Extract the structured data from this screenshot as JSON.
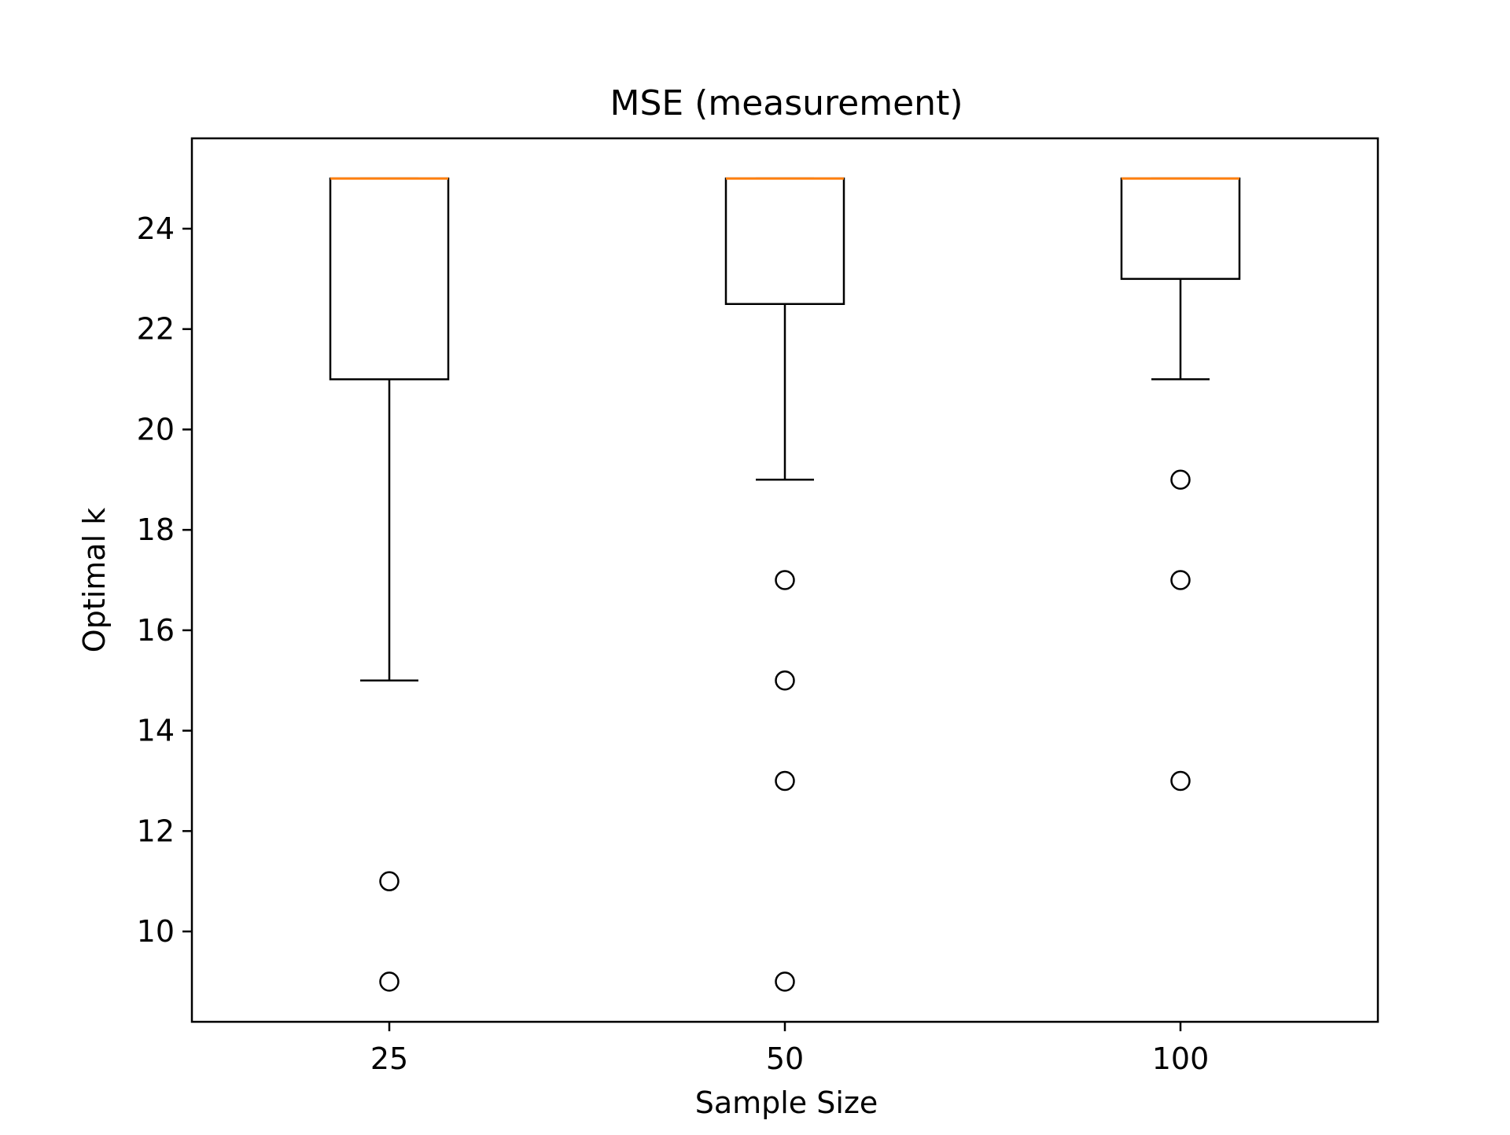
{
  "chart_data": {
    "type": "box",
    "title": "MSE (measurement)",
    "xlabel": "Sample Size",
    "ylabel": "Optimal k",
    "categories": [
      "25",
      "50",
      "100"
    ],
    "ylim": [
      8.2,
      25.8
    ],
    "yticks": [
      10,
      12,
      14,
      16,
      18,
      20,
      22,
      24
    ],
    "grid": false,
    "legend": "none",
    "boxes": [
      {
        "category": "25",
        "q1": 21,
        "median": 25,
        "q3": 25,
        "whisker_low": 15,
        "whisker_high": 25,
        "outliers": [
          11,
          9
        ]
      },
      {
        "category": "50",
        "q1": 22.5,
        "median": 25,
        "q3": 25,
        "whisker_low": 19,
        "whisker_high": 25,
        "outliers": [
          17,
          15,
          13,
          9
        ]
      },
      {
        "category": "100",
        "q1": 23,
        "median": 25,
        "q3": 25,
        "whisker_low": 21,
        "whisker_high": 25,
        "outliers": [
          19,
          17,
          13
        ]
      }
    ],
    "colors": {
      "box": "#000000",
      "median": "#ff7f0e",
      "outlier": "#000000"
    }
  }
}
